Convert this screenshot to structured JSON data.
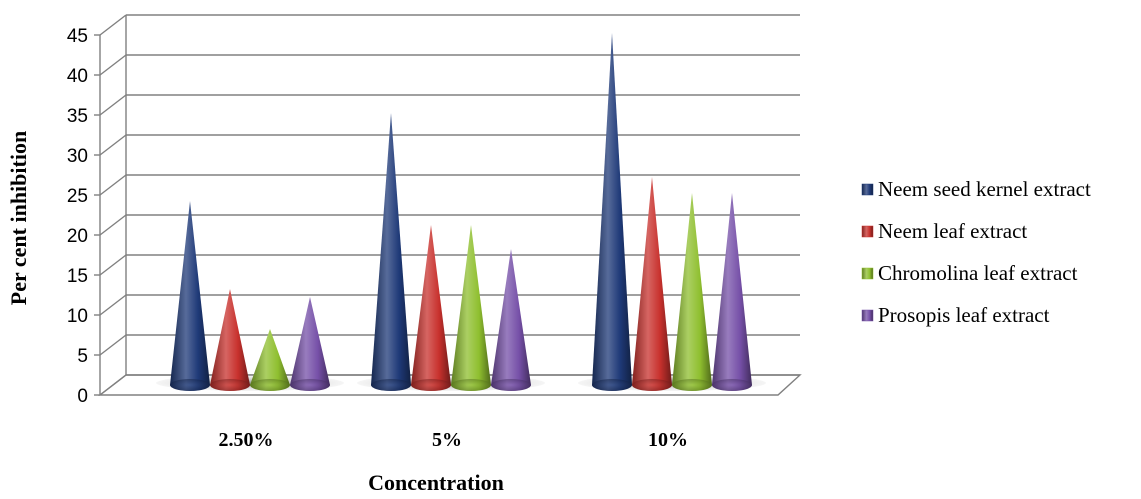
{
  "chart_data": {
    "type": "bar",
    "style": "3d-cone",
    "xlabel": "Concentration",
    "ylabel": "Per cent inhibition",
    "categories": [
      "2.50%",
      "5%",
      "10%"
    ],
    "ylim": [
      0,
      45
    ],
    "yticks": [
      0,
      5,
      10,
      15,
      20,
      25,
      30,
      35,
      40,
      45
    ],
    "grid": true,
    "legend_position": "right",
    "series": [
      {
        "name": "Neem seed kernel extract",
        "color": "#1f3a78",
        "values": [
          23,
          34,
          44
        ]
      },
      {
        "name": "Neem leaf extract",
        "color": "#c8312d",
        "values": [
          12,
          20,
          26
        ]
      },
      {
        "name": "Chromolina leaf extract",
        "color": "#8fbf2f",
        "values": [
          7,
          20,
          24
        ]
      },
      {
        "name": "Prosopis leaf extract",
        "color": "#7650a8",
        "values": [
          11,
          17,
          24
        ]
      }
    ]
  }
}
